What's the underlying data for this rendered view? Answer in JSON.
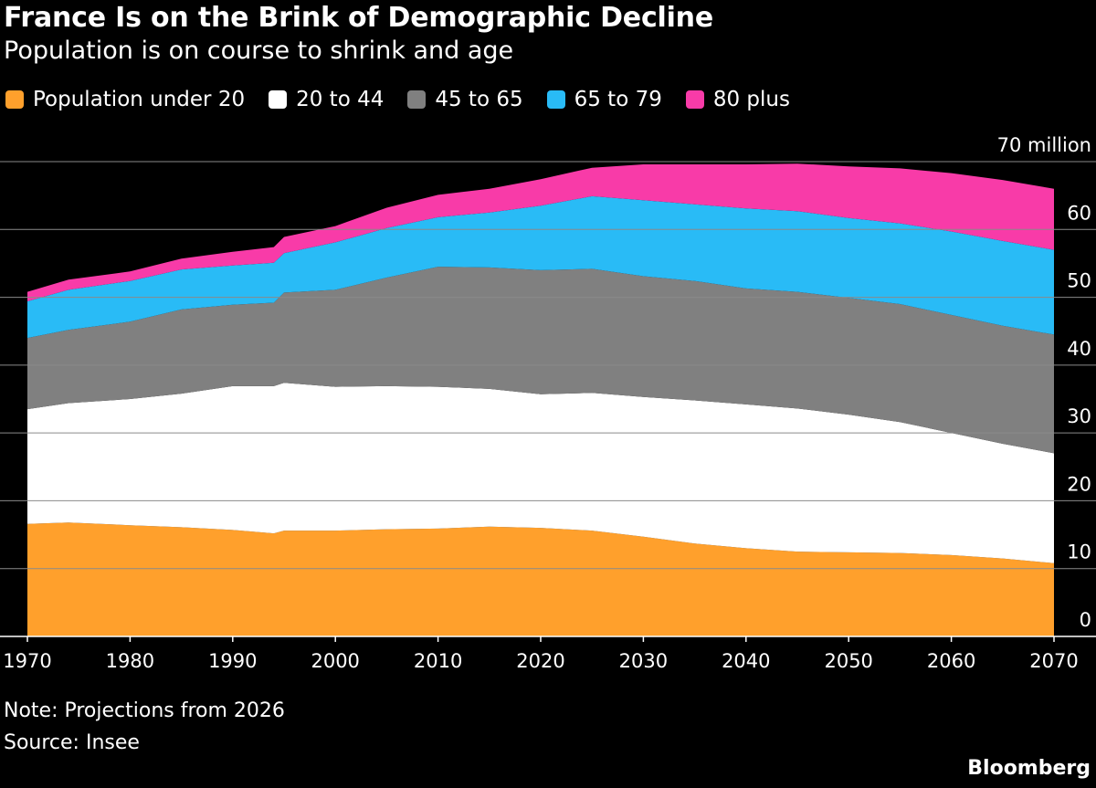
{
  "title": "France Is on the Brink of Demographic Decline",
  "subtitle": "Population is on course to shrink and age",
  "note": "Note: Projections from 2026",
  "source": "Source: Insee",
  "brand": "Bloomberg",
  "chart_data": {
    "type": "area",
    "stacked": true,
    "ylim": [
      0,
      70
    ],
    "yticks": [
      0,
      10,
      20,
      30,
      40,
      50,
      60,
      70
    ],
    "ytick_labels": [
      "0",
      "10",
      "20",
      "30",
      "40",
      "50",
      "60",
      "70 million"
    ],
    "xticks": [
      1970,
      1980,
      1990,
      2000,
      2010,
      2020,
      2030,
      2040,
      2050,
      2060,
      2070
    ],
    "xlim": [
      1970,
      2070
    ],
    "grid": "horizontal",
    "legend_position": "top",
    "x": [
      1970,
      1974,
      1980,
      1985,
      1990,
      1994,
      1995,
      2000,
      2005,
      2010,
      2015,
      2020,
      2025,
      2030,
      2035,
      2040,
      2045,
      2050,
      2055,
      2060,
      2065,
      2070
    ],
    "series": [
      {
        "name": "Population under 20",
        "color": "#ffa02c",
        "values": [
          16.6,
          16.8,
          16.4,
          16.1,
          15.7,
          15.2,
          15.6,
          15.6,
          15.8,
          15.9,
          16.2,
          16.0,
          15.6,
          14.7,
          13.7,
          13.0,
          12.5,
          12.4,
          12.3,
          12.0,
          11.5,
          10.8
        ]
      },
      {
        "name": "20 to 44",
        "color": "#ffffff",
        "values": [
          16.9,
          17.6,
          18.6,
          19.7,
          21.2,
          21.7,
          21.8,
          21.2,
          21.1,
          20.9,
          20.3,
          19.7,
          20.3,
          20.6,
          21.1,
          21.2,
          21.1,
          20.3,
          19.3,
          18.0,
          16.9,
          16.2
        ]
      },
      {
        "name": "45 to 65",
        "color": "#808080",
        "values": [
          10.5,
          10.8,
          11.4,
          12.4,
          12.0,
          12.3,
          13.3,
          14.3,
          16.0,
          17.7,
          17.9,
          18.3,
          18.3,
          17.8,
          17.6,
          17.1,
          17.2,
          17.2,
          17.4,
          17.4,
          17.4,
          17.5
        ]
      },
      {
        "name": "65 to 79",
        "color": "#29bbf6",
        "values": [
          5.4,
          5.9,
          6.0,
          5.9,
          5.8,
          5.9,
          5.8,
          7.0,
          7.3,
          7.3,
          8.1,
          9.5,
          10.7,
          11.2,
          11.3,
          11.8,
          11.9,
          11.8,
          11.9,
          12.3,
          12.5,
          12.5
        ]
      },
      {
        "name": "80 plus",
        "color": "#f83ba8",
        "values": [
          1.4,
          1.5,
          1.4,
          1.6,
          2.0,
          2.3,
          2.4,
          2.4,
          3.0,
          3.3,
          3.5,
          3.9,
          4.2,
          5.3,
          5.9,
          6.5,
          7.0,
          7.6,
          8.1,
          8.6,
          9.0,
          9.0
        ]
      }
    ]
  }
}
